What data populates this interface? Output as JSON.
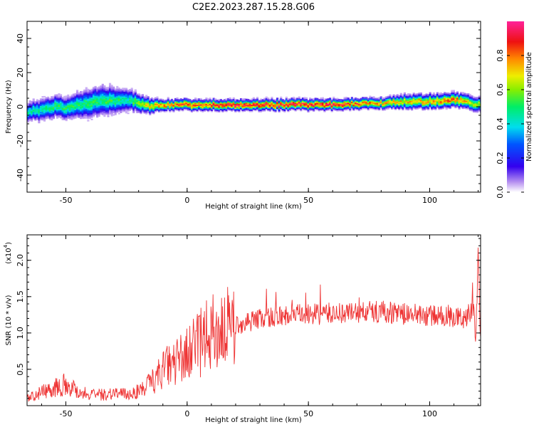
{
  "title": "C2E2.2023.287.15.28.G06",
  "chart_data": [
    {
      "type": "heatmap",
      "xlabel": "Height of straight line (km)",
      "ylabel": "Frequency (Hz)",
      "xlim": [
        -66,
        121
      ],
      "ylim": [
        -50,
        50
      ],
      "xticks": [
        "-50",
        "0",
        "50",
        "100"
      ],
      "yticks": [
        "40",
        "20",
        "0",
        "-20",
        "-40"
      ],
      "colorbar": {
        "label": "Normalized spectral amplitude",
        "range": [
          0,
          1
        ],
        "ticks": [
          "0.0",
          "0.2",
          "0.4",
          "0.6",
          "0.8"
        ]
      },
      "ridge": {
        "x": [
          -66,
          -60,
          -55,
          -50,
          -45,
          -40,
          -35,
          -30,
          -25,
          -20,
          -15,
          -10,
          0,
          20,
          40,
          60,
          80,
          90,
          100,
          110,
          121
        ],
        "freq": [
          -3,
          -2,
          0,
          -1,
          1,
          2,
          4,
          3,
          4,
          2,
          0,
          1,
          1,
          1,
          1,
          1,
          2,
          3,
          3,
          4,
          1
        ],
        "amplitude": [
          0.45,
          0.45,
          0.5,
          0.5,
          0.5,
          0.5,
          0.5,
          0.5,
          0.45,
          0.6,
          0.7,
          0.8,
          0.85,
          0.9,
          0.9,
          0.9,
          0.75,
          0.7,
          0.75,
          0.8,
          0.6
        ],
        "spread": [
          5,
          6,
          6,
          6,
          7,
          8,
          8,
          7,
          6,
          5,
          4,
          3,
          3,
          3,
          3,
          3,
          3,
          4,
          4,
          4,
          4
        ]
      }
    },
    {
      "type": "line",
      "xlabel": "Height of straight line (km)",
      "ylabel": "SNR (10 * v/v)",
      "yscale_label": "(x10",
      "yscale_exp": "4",
      "yscale_close": ")",
      "xlim": [
        -66,
        121
      ],
      "ylim": [
        0,
        23500
      ],
      "xticks": [
        "-50",
        "0",
        "50",
        "100"
      ],
      "yticks": [
        "0.5",
        "1.0",
        "1.5",
        "2.0"
      ],
      "color": "#ee3333",
      "series": [
        {
          "x": [
            -66,
            -60,
            -55,
            -50,
            -45,
            -40,
            -35,
            -30,
            -25,
            -20,
            -15,
            -10,
            -5,
            0,
            5,
            10,
            15,
            20,
            25,
            30,
            35,
            40,
            45,
            50,
            55,
            60,
            65,
            70,
            75,
            80,
            85,
            90,
            95,
            100,
            105,
            110,
            115,
            118,
            119,
            120,
            121
          ],
          "y": [
            1000,
            1800,
            2500,
            3000,
            2000,
            1500,
            1500,
            1800,
            1500,
            2000,
            3000,
            5000,
            6000,
            7000,
            8500,
            10000,
            10500,
            11000,
            11500,
            12000,
            12200,
            12400,
            12500,
            12500,
            12600,
            12700,
            12800,
            12800,
            12900,
            13000,
            12800,
            12600,
            12500,
            12400,
            12300,
            12200,
            12000,
            14000,
            9000,
            20000,
            8000
          ]
        }
      ]
    }
  ]
}
